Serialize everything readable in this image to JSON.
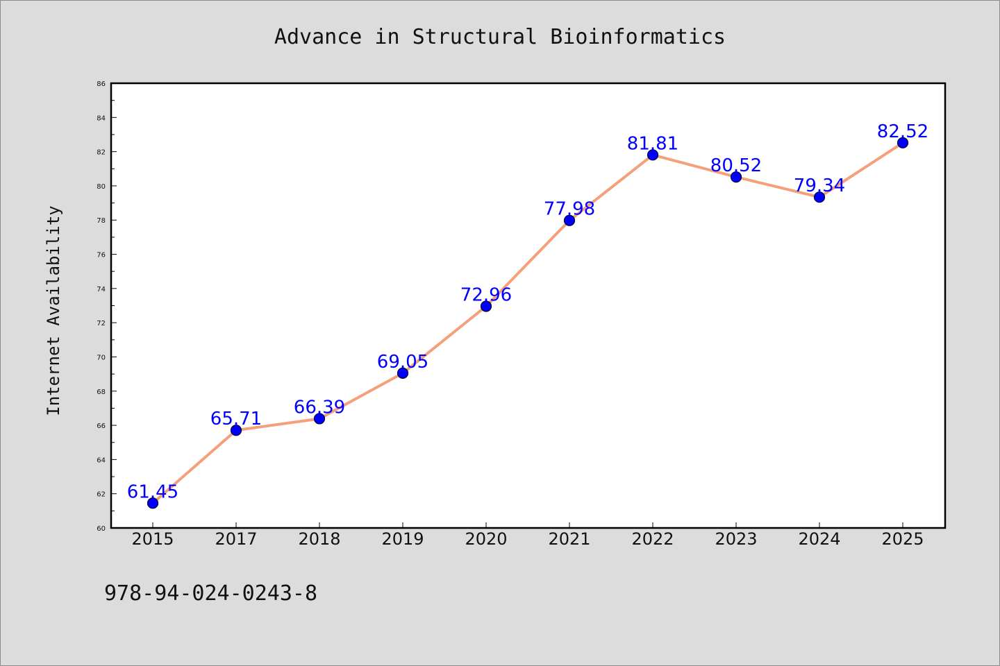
{
  "chart_data": {
    "type": "line",
    "title": "Advance in Structural Bioinformatics",
    "xlabel": "",
    "ylabel": "Internet Availability",
    "categories": [
      "2015",
      "2017",
      "2018",
      "2019",
      "2020",
      "2021",
      "2022",
      "2023",
      "2024",
      "2025"
    ],
    "series": [
      {
        "values": [
          61.45,
          65.71,
          66.39,
          69.05,
          72.96,
          77.98,
          81.81,
          80.52,
          79.34,
          82.52
        ],
        "data_labels": [
          "61.45",
          "65.71",
          "66.39",
          "69.05",
          "72.96",
          "77.98",
          "81.81",
          "80.52",
          "79.34",
          "82.52"
        ]
      }
    ],
    "ylim": [
      60,
      86
    ],
    "yticks": [
      "60",
      "62",
      "64",
      "66",
      "68",
      "70",
      "72",
      "74",
      "76",
      "78",
      "80",
      "82",
      "84",
      "86"
    ],
    "grid": false,
    "legend": "none",
    "colors": {
      "line": "#f4a07a",
      "marker": "#0000ff",
      "marker_edge": "#000033",
      "data_label": "#0000ff",
      "plot_background": "#ffffff",
      "figure_background": "#dcdcdc"
    }
  },
  "footer": {
    "isbn": "978-94-024-0243-8"
  }
}
